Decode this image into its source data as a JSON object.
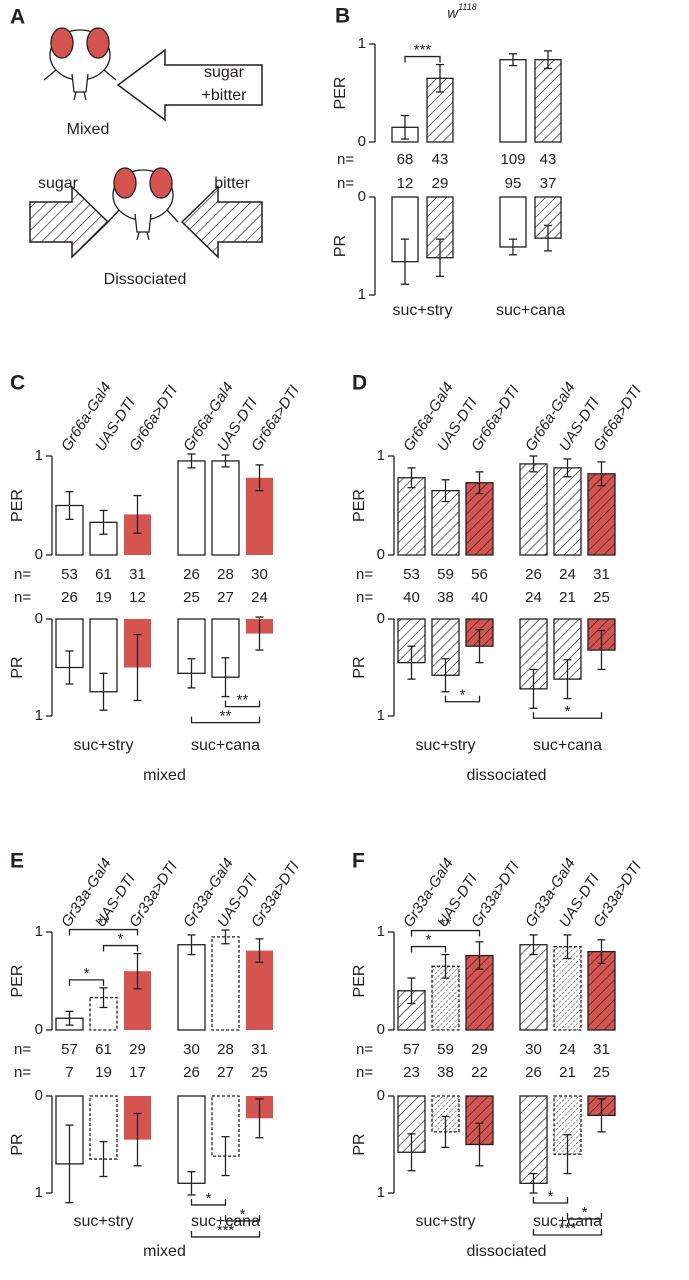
{
  "panel_a": {
    "label": "A",
    "mixed_arrow": [
      "sugar",
      "+bitter"
    ],
    "mixed": "Mixed",
    "left_arrow": "sugar",
    "right_arrow": "bitter",
    "dissociated": "Dissociated"
  },
  "chart_data": [
    {
      "type": "bar",
      "panel": "B",
      "title": "w",
      "title_sup": "1118",
      "groups": [
        "suc+stry",
        "suc+cana"
      ],
      "bar_style": [
        "open",
        "hatched",
        "open",
        "hatched"
      ],
      "bar_colors": [
        "#ffffff",
        "#ffffff",
        "#ffffff",
        "#ffffff"
      ],
      "per": {
        "ylabel": "PER",
        "ylim": [
          0,
          1
        ],
        "yticks": [
          0,
          1
        ],
        "inverted": false,
        "n_label": "n=",
        "n": [
          68,
          43,
          109,
          43
        ],
        "values": [
          0.15,
          0.65,
          0.84,
          0.84
        ],
        "errors": [
          0.12,
          0.14,
          0.06,
          0.09
        ],
        "significance": [
          {
            "bars": [
              0,
              1
            ],
            "label": "***"
          }
        ]
      },
      "pr": {
        "ylabel": "PR",
        "ylim": [
          0,
          1
        ],
        "yticks": [
          0,
          1
        ],
        "inverted": true,
        "n_label": "n=",
        "n": [
          12,
          29,
          95,
          37
        ],
        "values": [
          0.66,
          0.62,
          0.51,
          0.42
        ],
        "errors": [
          0.23,
          0.19,
          0.08,
          0.13
        ]
      }
    },
    {
      "type": "bar",
      "panel": "C",
      "condition": "mixed",
      "categories": [
        "Gr66a-Gal4",
        "UAS-DTI",
        "Gr66a>DTI",
        "Gr66a-Gal4",
        "UAS-DTI",
        "Gr66a>DTI"
      ],
      "groups": [
        "suc+stry",
        "suc+cana"
      ],
      "bar_style": [
        "open",
        "open",
        "filled",
        "open",
        "open",
        "filled"
      ],
      "bar_colors": [
        "#ffffff",
        "#ffffff",
        "#d55450",
        "#ffffff",
        "#ffffff",
        "#d55450"
      ],
      "per": {
        "ylabel": "PER",
        "ylim": [
          0,
          1
        ],
        "yticks": [
          0,
          1
        ],
        "inverted": false,
        "n_label": "n=",
        "n": [
          53,
          61,
          31,
          26,
          28,
          30
        ],
        "values": [
          0.5,
          0.33,
          0.41,
          0.95,
          0.95,
          0.78
        ],
        "errors": [
          0.14,
          0.12,
          0.19,
          0.07,
          0.06,
          0.13
        ]
      },
      "pr": {
        "ylabel": "PR",
        "ylim": [
          0,
          1
        ],
        "yticks": [
          0,
          1
        ],
        "inverted": true,
        "n_label": "n=",
        "n": [
          26,
          19,
          12,
          25,
          27,
          24
        ],
        "values": [
          0.5,
          0.75,
          0.5,
          0.56,
          0.6,
          0.15
        ],
        "errors": [
          0.17,
          0.19,
          0.34,
          0.15,
          0.2,
          0.17
        ],
        "significance": [
          {
            "bars": [
              4,
              5
            ],
            "label": "**"
          },
          {
            "bars": [
              3,
              5
            ],
            "label": "**"
          }
        ]
      }
    },
    {
      "type": "bar",
      "panel": "D",
      "condition": "dissociated",
      "categories": [
        "Gr66a-Gal4",
        "UAS-DTI",
        "Gr66a>DTI",
        "Gr66a-Gal4",
        "UAS-DTI",
        "Gr66a>DTI"
      ],
      "groups": [
        "suc+stry",
        "suc+cana"
      ],
      "bar_style": [
        "hatched",
        "hatched",
        "hatched",
        "hatched",
        "hatched",
        "hatched"
      ],
      "bar_colors": [
        "#ffffff",
        "#ffffff",
        "#d55450",
        "#ffffff",
        "#ffffff",
        "#d55450"
      ],
      "per": {
        "ylabel": "PER",
        "ylim": [
          0,
          1
        ],
        "yticks": [
          0,
          1
        ],
        "inverted": false,
        "n_label": "n=",
        "n": [
          53,
          59,
          56,
          26,
          24,
          31
        ],
        "values": [
          0.78,
          0.65,
          0.73,
          0.92,
          0.88,
          0.82
        ],
        "errors": [
          0.1,
          0.11,
          0.11,
          0.08,
          0.09,
          0.12
        ]
      },
      "pr": {
        "ylabel": "PR",
        "ylim": [
          0,
          1
        ],
        "yticks": [
          0,
          1
        ],
        "inverted": true,
        "n_label": "n=",
        "n": [
          40,
          38,
          40,
          24,
          21,
          25
        ],
        "values": [
          0.45,
          0.58,
          0.28,
          0.72,
          0.62,
          0.32
        ],
        "errors": [
          0.17,
          0.17,
          0.17,
          0.2,
          0.2,
          0.2
        ],
        "significance": [
          {
            "bars": [
              1,
              2
            ],
            "label": "*"
          },
          {
            "bars": [
              3,
              5
            ],
            "label": "*"
          }
        ]
      }
    },
    {
      "type": "bar",
      "panel": "E",
      "condition": "mixed",
      "categories": [
        "Gr33a-Gal4",
        "UAS-DTI",
        "Gr33a>DTI",
        "Gr33a-Gal4",
        "UAS-DTI",
        "Gr33a>DTI"
      ],
      "groups": [
        "suc+stry",
        "suc+cana"
      ],
      "bar_style": [
        "open",
        "open-dashed",
        "filled",
        "open",
        "open-dashed",
        "filled"
      ],
      "bar_colors": [
        "#ffffff",
        "#ffffff",
        "#d55450",
        "#ffffff",
        "#ffffff",
        "#d55450"
      ],
      "per": {
        "ylabel": "PER",
        "ylim": [
          0,
          1
        ],
        "yticks": [
          0,
          1
        ],
        "inverted": false,
        "n_label": "n=",
        "n": [
          57,
          61,
          29,
          30,
          28,
          31
        ],
        "values": [
          0.12,
          0.33,
          0.6,
          0.87,
          0.95,
          0.81
        ],
        "errors": [
          0.07,
          0.1,
          0.18,
          0.1,
          0.07,
          0.12
        ],
        "significance": [
          {
            "bars": [
              0,
              1
            ],
            "label": "*"
          },
          {
            "bars": [
              1,
              2
            ],
            "label": "*"
          },
          {
            "bars": [
              0,
              2
            ],
            "label": "**"
          }
        ]
      },
      "pr": {
        "ylabel": "PR",
        "ylim": [
          0,
          1
        ],
        "yticks": [
          0,
          1
        ],
        "inverted": true,
        "n_label": "n=",
        "n": [
          7,
          19,
          17,
          26,
          27,
          25
        ],
        "values": [
          0.7,
          0.65,
          0.45,
          0.9,
          0.62,
          0.23
        ],
        "errors": [
          0.4,
          0.18,
          0.27,
          0.12,
          0.2,
          0.2
        ],
        "significance": [
          {
            "bars": [
              3,
              4
            ],
            "label": "*"
          },
          {
            "bars": [
              4,
              5
            ],
            "label": "*"
          },
          {
            "bars": [
              3,
              5
            ],
            "label": "***"
          }
        ]
      }
    },
    {
      "type": "bar",
      "panel": "F",
      "condition": "dissociated",
      "categories": [
        "Gr33a-Gal4",
        "UAS-DTI",
        "Gr33a>DTI",
        "Gr33a-Gal4",
        "UAS-DTI",
        "Gr33a>DTI"
      ],
      "groups": [
        "suc+stry",
        "suc+cana"
      ],
      "bar_style": [
        "hatched",
        "fine-hatched-dashed",
        "hatched",
        "hatched",
        "fine-hatched-dashed",
        "hatched"
      ],
      "bar_colors": [
        "#ffffff",
        "#ffffff",
        "#d55450",
        "#ffffff",
        "#ffffff",
        "#d55450"
      ],
      "per": {
        "ylabel": "PER",
        "ylim": [
          0,
          1
        ],
        "yticks": [
          0,
          1
        ],
        "inverted": false,
        "n_label": "n=",
        "n": [
          57,
          59,
          29,
          30,
          24,
          31
        ],
        "values": [
          0.4,
          0.65,
          0.76,
          0.87,
          0.85,
          0.8
        ],
        "errors": [
          0.13,
          0.12,
          0.14,
          0.1,
          0.12,
          0.12
        ],
        "significance": [
          {
            "bars": [
              0,
              1
            ],
            "label": "*"
          },
          {
            "bars": [
              0,
              2
            ],
            "label": "**"
          }
        ]
      },
      "pr": {
        "ylabel": "PR",
        "ylim": [
          0,
          1
        ],
        "yticks": [
          0,
          1
        ],
        "inverted": true,
        "n_label": "n=",
        "n": [
          23,
          38,
          22,
          26,
          21,
          25
        ],
        "values": [
          0.58,
          0.37,
          0.5,
          0.9,
          0.6,
          0.2
        ],
        "errors": [
          0.19,
          0.16,
          0.22,
          0.1,
          0.2,
          0.17
        ],
        "significance": [
          {
            "bars": [
              3,
              4
            ],
            "label": "*"
          },
          {
            "bars": [
              4,
              5
            ],
            "label": "*"
          },
          {
            "bars": [
              3,
              5
            ],
            "label": "***"
          }
        ]
      }
    }
  ]
}
